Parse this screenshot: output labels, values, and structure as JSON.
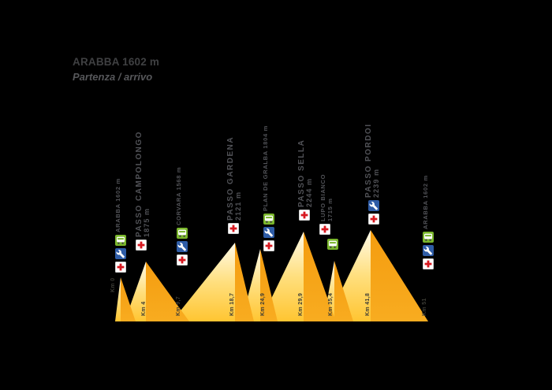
{
  "header": {
    "title": "ARABBA 1602 m",
    "subtitle": "Partenza / arrivo"
  },
  "colors": {
    "background": "#000000",
    "profile_light_top": "#FFFBEA",
    "profile_light_bottom": "#FFC531",
    "profile_orange": "#F5A01B",
    "icon_green": "#7AB62C",
    "icon_blue": "#2E5CA6",
    "icon_red": "#D71920",
    "label_gray": "#515257"
  },
  "waypoints": [
    {
      "km_label": "Km 0",
      "lines": [
        "ARABBA 1602 m"
      ],
      "services": [
        "bus",
        "mechanic",
        "medical"
      ]
    },
    {
      "km_label": "Km 4",
      "lines": [
        "PASSO CAMPOLONGO",
        "1875 m"
      ],
      "services": [
        "medical"
      ]
    },
    {
      "km_label": "Km 9,7",
      "lines": [
        "CORVARA 1568 m"
      ],
      "services": [
        "bus",
        "mechanic",
        "medical"
      ]
    },
    {
      "km_label": "Km 18,7",
      "lines": [
        "PASSO GARDENA",
        "2121 m"
      ],
      "services": [
        "medical"
      ]
    },
    {
      "km_label": "Km 24,9",
      "lines": [
        "PLAN DE GRALBA 1804 m"
      ],
      "services": [
        "bus",
        "mechanic",
        "medical"
      ]
    },
    {
      "km_label": "Km 29,9",
      "lines": [
        "PASSO SELLA",
        "2244 m"
      ],
      "services": [
        "medical"
      ]
    },
    {
      "km_label": "Km 35,4",
      "lines": [
        "LUPO BIANCO",
        "1715 m"
      ],
      "services": [
        "medical",
        "bus"
      ]
    },
    {
      "km_label": "Km 41,8",
      "lines": [
        "PASSO PORDOI",
        "2239 m"
      ],
      "services": [
        "mechanic",
        "medical"
      ]
    },
    {
      "km_label": "Km 51",
      "lines": [
        "ARABBA 1602 m"
      ],
      "services": [
        "bus",
        "mechanic",
        "medical"
      ]
    }
  ],
  "chart_data": {
    "type": "area",
    "title": "ARABBA 1602 m — Partenza / arrivo",
    "xlabel": "Km",
    "ylabel": "m",
    "grid": false,
    "legend": false,
    "x": [
      0,
      4,
      9.7,
      18.7,
      24.9,
      29.9,
      35.4,
      41.8,
      51
    ],
    "x_labels": [
      "Km 0",
      "Km 4",
      "Km 9,7",
      "Km 18,7",
      "Km 24,9",
      "Km 29,9",
      "Km 35,4",
      "Km 41,8",
      "Km 51"
    ],
    "elevation_m": [
      1602,
      1875,
      1568,
      2121,
      1804,
      2244,
      1715,
      2239,
      1602
    ],
    "point_names": [
      "Arabba",
      "Passo Campolongo",
      "Corvara",
      "Passo Gardena",
      "Plan de Gralba",
      "Passo Sella",
      "Lupo Bianco",
      "Passo Pordoi",
      "Arabba"
    ]
  }
}
